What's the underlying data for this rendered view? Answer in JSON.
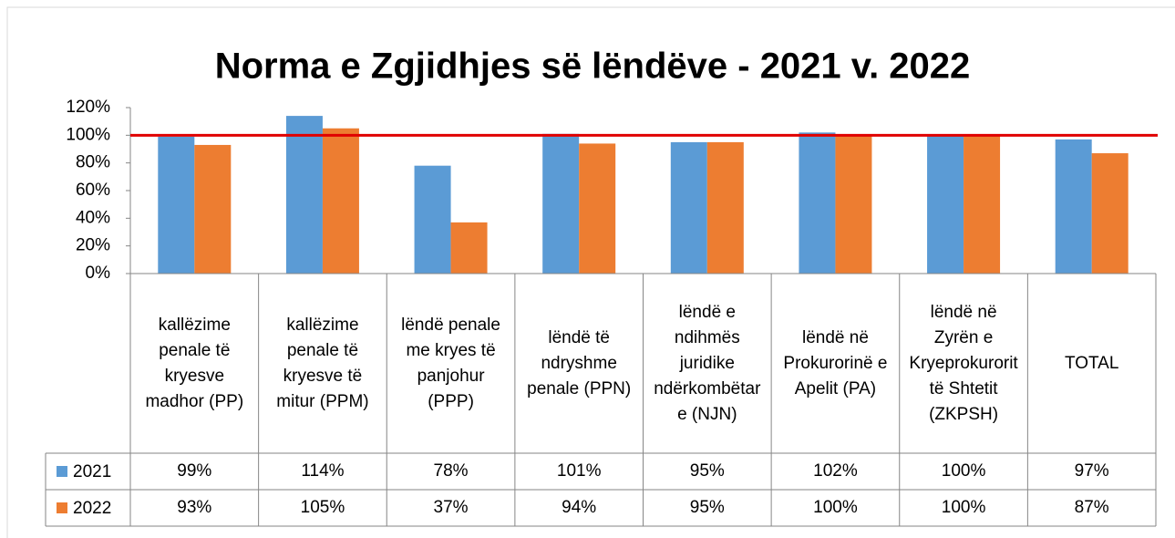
{
  "chart_data": {
    "type": "bar",
    "title": "Norma e Zgjidhjes së lëndëve - 2021 v. 2022",
    "categories": [
      "kallëzime penale të kryesve madhor (PP)",
      "kallëzime penale të kryesve të mitur (PPM)",
      "lëndë penale me kryes të panjohur (PPP)",
      "lëndë të ndryshme penale (PPN)",
      "lëndë e ndihmës juridike ndërkombëtare (NJN)",
      "lëndë në Prokurorinë e Apelit (PA)",
      "lëndë në Zyrën e Kryeprokurorit të Shtetit (ZKPSH)",
      "TOTAL"
    ],
    "series": [
      {
        "name": "2021",
        "color": "#5b9bd5",
        "values": [
          99,
          114,
          78,
          101,
          95,
          102,
          100,
          97
        ],
        "value_labels": [
          "99%",
          "114%",
          "78%",
          "101%",
          "95%",
          "102%",
          "100%",
          "97%"
        ]
      },
      {
        "name": "2022",
        "color": "#ed7d31",
        "values": [
          93,
          105,
          37,
          94,
          95,
          100,
          100,
          87
        ],
        "value_labels": [
          "93%",
          "105%",
          "37%",
          "94%",
          "95%",
          "100%",
          "100%",
          "87%"
        ]
      }
    ],
    "ylim": [
      0,
      120
    ],
    "yticks": [
      {
        "value": 0,
        "label": "0%"
      },
      {
        "value": 20,
        "label": "20%"
      },
      {
        "value": 40,
        "label": "40%"
      },
      {
        "value": 60,
        "label": "60%"
      },
      {
        "value": 80,
        "label": "80%"
      },
      {
        "value": 100,
        "label": "100%"
      },
      {
        "value": 120,
        "label": "120%"
      }
    ],
    "reference_line": {
      "value": 100,
      "color": "#e00000"
    },
    "data_table": true
  }
}
